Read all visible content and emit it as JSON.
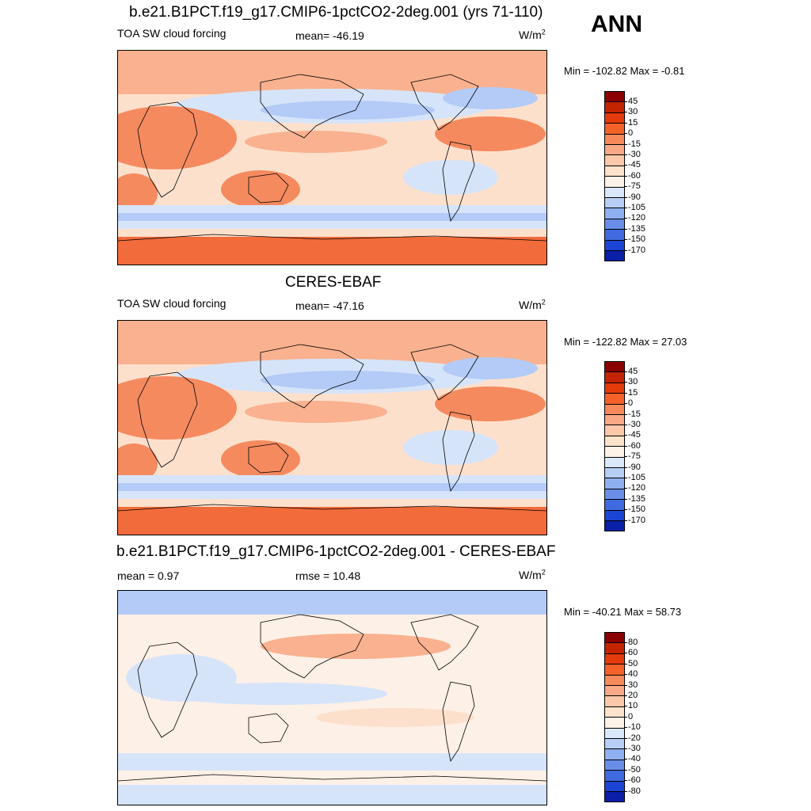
{
  "season": "ANN",
  "units_base": "W/m",
  "units_exp": "2",
  "panels": [
    {
      "title": "b.e21.B1PCT.f19_g17.CMIP6-1pctCO2-2deg.001 (yrs 71-110)",
      "left_text": "TOA SW cloud forcing",
      "center_text": "mean= -46.19",
      "minmax": "Min = -102.82 Max =  -0.81",
      "scale": "abs"
    },
    {
      "title": "CERES-EBAF",
      "left_text": "TOA SW cloud forcing",
      "center_text": "mean= -47.16",
      "minmax": "Min = -122.82 Max =  27.03",
      "scale": "abs"
    },
    {
      "title": "b.e21.B1PCT.f19_g17.CMIP6-1pctCO2-2deg.001 - CERES-EBAF",
      "left_text": "mean =   0.97",
      "center_text": "rmse =  10.48",
      "minmax": "Min = -40.21 Max =  58.73",
      "scale": "diff"
    }
  ],
  "colorbars": {
    "abs": {
      "labels": [
        "45",
        "30",
        "15",
        "0",
        "-15",
        "-30",
        "-45",
        "-60",
        "-75",
        "-90",
        "-105",
        "-120",
        "-135",
        "-150",
        "-170"
      ],
      "colors": [
        "#8b0000",
        "#c42400",
        "#e53a0c",
        "#f4622a",
        "#f78a5c",
        "#f9a985",
        "#fbc8aa",
        "#fde2cc",
        "#fdf2e8",
        "#dbe8fb",
        "#b7cff7",
        "#8fb0f0",
        "#6a8ee8",
        "#3f6ae0",
        "#1c44d4",
        "#0a1fa8"
      ]
    },
    "diff": {
      "labels": [
        "80",
        "60",
        "50",
        "40",
        "30",
        "20",
        "10",
        "0",
        "-10",
        "-20",
        "-30",
        "-40",
        "-50",
        "-60",
        "-80"
      ],
      "colors": [
        "#8b0000",
        "#c42400",
        "#e53a0c",
        "#f4622a",
        "#f78a5c",
        "#f9a985",
        "#fbc8aa",
        "#fde2cc",
        "#fdf2e8",
        "#dbe8fb",
        "#b7cff7",
        "#8fb0f0",
        "#6a8ee8",
        "#3f6ae0",
        "#1c44d4",
        "#0a1fa8"
      ]
    }
  },
  "map_colors": {
    "deep_red": "#f26b3a",
    "red": "#f58a5f",
    "salmon": "#f9b18f",
    "peach": "#fde0cc",
    "cream": "#fdf0e6",
    "pale_blue": "#d6e4fa",
    "blue": "#b3cbf6",
    "mid_blue": "#8fb0ee",
    "coast": "#000000"
  }
}
